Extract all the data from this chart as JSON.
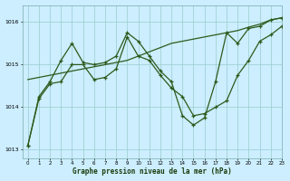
{
  "xlabel": "Graphe pression niveau de la mer (hPa)",
  "bg_color": "#cceeff",
  "grid_color": "#99cccc",
  "line_color": "#2d5a1b",
  "ylim": [
    1012.8,
    1016.4
  ],
  "xlim": [
    -0.5,
    23
  ],
  "yticks": [
    1013,
    1014,
    1015,
    1016
  ],
  "xticks": [
    0,
    1,
    2,
    3,
    4,
    5,
    6,
    7,
    8,
    9,
    10,
    11,
    12,
    13,
    14,
    15,
    16,
    17,
    18,
    19,
    20,
    21,
    22,
    23
  ],
  "line_top": [
    1014.65,
    1014.7,
    1014.75,
    1014.8,
    1014.85,
    1014.9,
    1014.95,
    1015.0,
    1015.05,
    1015.1,
    1015.2,
    1015.3,
    1015.4,
    1015.5,
    1015.55,
    1015.6,
    1015.65,
    1015.7,
    1015.75,
    1015.8,
    1015.88,
    1015.95,
    1016.05,
    1016.1
  ],
  "line_mid": [
    1013.1,
    1014.2,
    1014.55,
    1014.6,
    1015.0,
    1015.0,
    1014.65,
    1014.7,
    1014.9,
    1015.65,
    1015.2,
    1015.1,
    1014.75,
    1014.45,
    1014.25,
    1013.8,
    1013.85,
    1014.0,
    1014.15,
    1014.75,
    1015.1,
    1015.55,
    1015.7,
    1015.9
  ],
  "line_volatile": [
    1013.1,
    1014.25,
    1014.6,
    1015.1,
    1015.5,
    1015.05,
    1015.0,
    1015.05,
    1015.2,
    1015.75,
    1015.55,
    1015.2,
    1014.85,
    1014.6,
    1013.8,
    1013.58,
    1013.75,
    1014.6,
    1015.75,
    1015.5,
    1015.85,
    1015.9,
    1016.05,
    1016.1
  ]
}
